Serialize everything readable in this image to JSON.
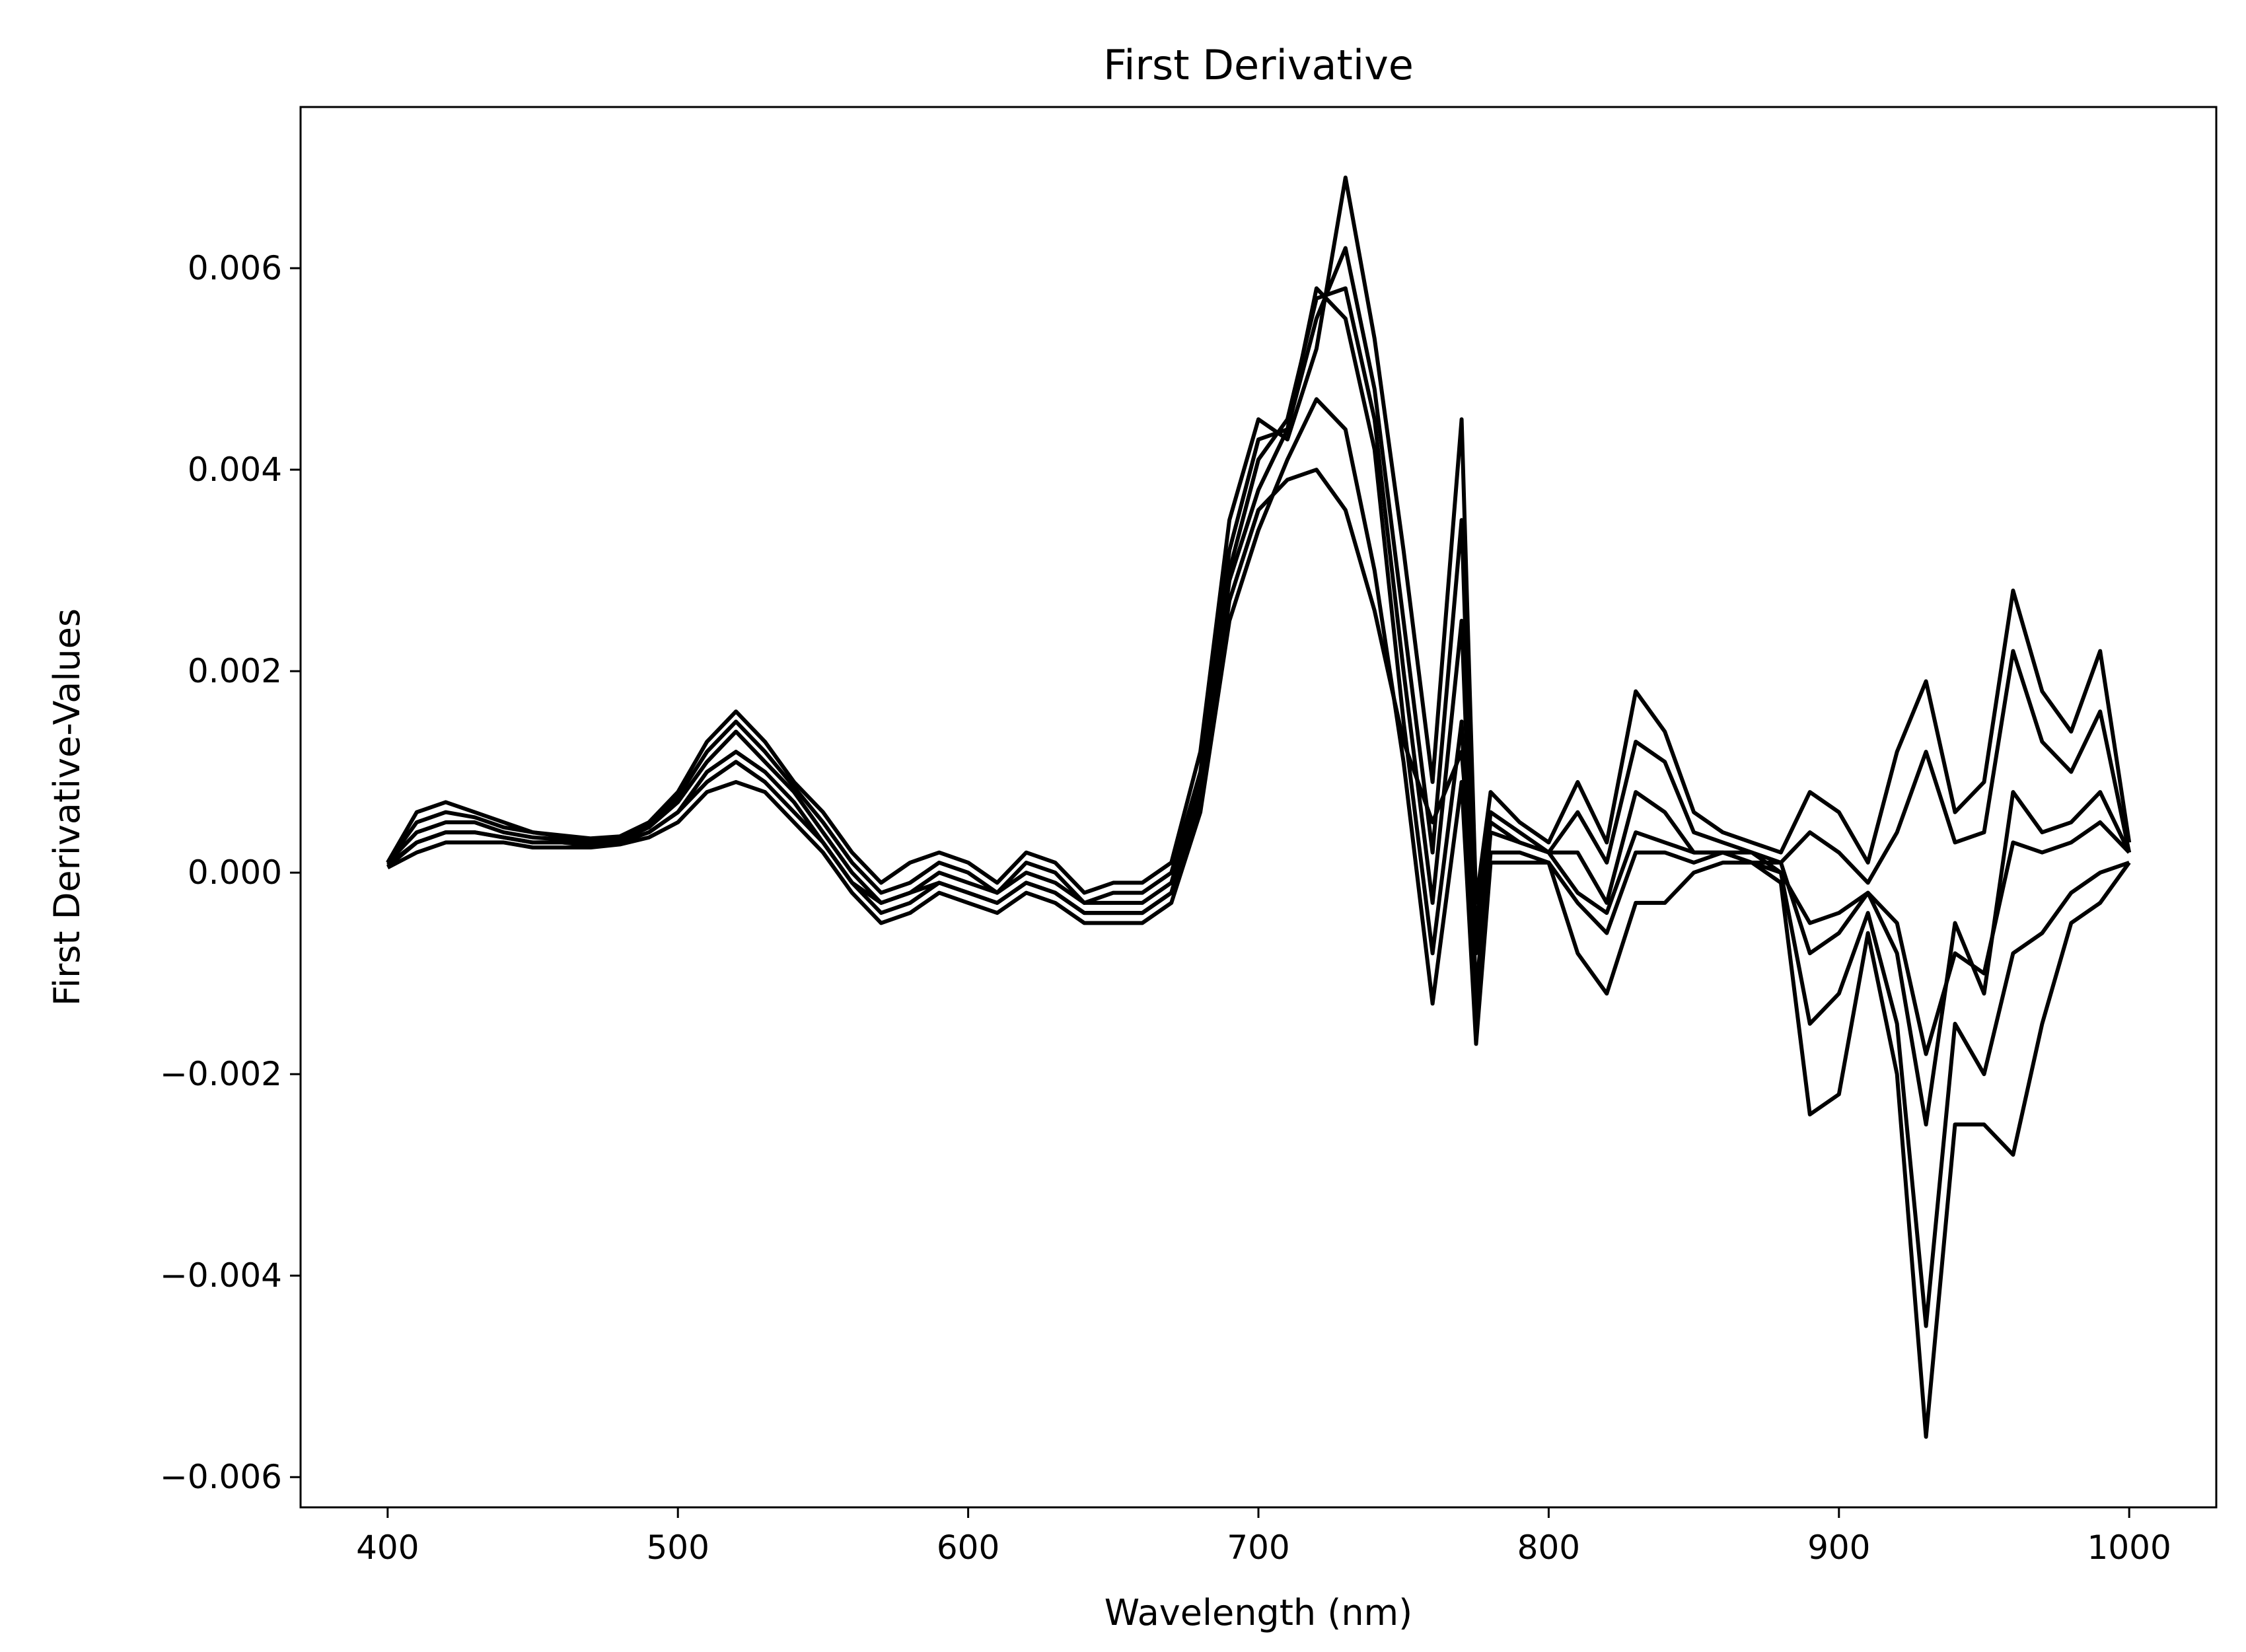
{
  "chart_data": {
    "type": "line",
    "title": "First Derivative",
    "xlabel": "Wavelength (nm)",
    "ylabel": "First Derivative-Values",
    "xlim": [
      370,
      1030
    ],
    "ylim": [
      -0.0063,
      0.0076
    ],
    "xticks": [
      400,
      500,
      600,
      700,
      800,
      900,
      1000
    ],
    "xtick_labels": [
      "400",
      "500",
      "600",
      "700",
      "800",
      "900",
      "1000"
    ],
    "yticks": [
      -0.006,
      -0.004,
      -0.002,
      0.0,
      0.002,
      0.004,
      0.006
    ],
    "ytick_labels": [
      "−0.006",
      "−0.004",
      "−0.002",
      "0.000",
      "0.002",
      "0.004",
      "0.006"
    ],
    "grid": false,
    "line_color": "#000000",
    "x": [
      400,
      410,
      420,
      430,
      440,
      450,
      460,
      470,
      480,
      490,
      500,
      510,
      520,
      530,
      540,
      550,
      560,
      570,
      580,
      590,
      600,
      610,
      620,
      630,
      640,
      650,
      660,
      670,
      680,
      690,
      700,
      710,
      720,
      730,
      740,
      750,
      760,
      770,
      775,
      780,
      790,
      800,
      810,
      820,
      830,
      840,
      850,
      860,
      870,
      880,
      890,
      900,
      910,
      920,
      930,
      940,
      950,
      960,
      970,
      980,
      990,
      1000
    ],
    "series": [
      {
        "values": [
          0.0001,
          0.0006,
          0.0007,
          0.0006,
          0.0005,
          0.0004,
          0.00037,
          0.00034,
          0.00036,
          0.0005,
          0.0008,
          0.0013,
          0.0016,
          0.0013,
          0.0009,
          0.0006,
          0.0002,
          -0.0001,
          0.0001,
          0.0002,
          0.0001,
          -0.0001,
          0.0002,
          0.0001,
          -0.0002,
          -0.0001,
          -0.0001,
          0.0001,
          0.0012,
          0.0035,
          0.0045,
          0.0043,
          0.0052,
          0.0069,
          0.0053,
          0.0032,
          0.0009,
          0.0045,
          -0.0003,
          0.0008,
          0.0005,
          0.0003,
          0.0009,
          0.0003,
          0.0018,
          0.0014,
          0.0006,
          0.0004,
          0.0003,
          0.0002,
          0.0008,
          0.0006,
          0.0001,
          0.0012,
          0.0019,
          0.0006,
          0.0009,
          0.0028,
          0.0018,
          0.0014,
          0.0022,
          0.0003
        ]
      },
      {
        "values": [
          0.0001,
          0.0005,
          0.0006,
          0.00055,
          0.00045,
          0.0004,
          0.00036,
          0.00033,
          0.00035,
          0.00048,
          0.00075,
          0.0012,
          0.0015,
          0.0012,
          0.00085,
          0.0005,
          0.0001,
          -0.0002,
          -0.0001,
          0.0001,
          0.0,
          -0.0002,
          0.0001,
          0.0,
          -0.0003,
          -0.0002,
          -0.0002,
          0.0,
          0.001,
          0.0032,
          0.0043,
          0.0044,
          0.0055,
          0.0062,
          0.0048,
          0.0025,
          0.0002,
          0.0035,
          -0.0008,
          0.0006,
          0.0004,
          0.0002,
          0.0006,
          0.0001,
          0.0013,
          0.0011,
          0.0004,
          0.0003,
          0.0002,
          0.0001,
          0.0004,
          0.0002,
          -0.0001,
          0.0004,
          0.0012,
          0.0003,
          0.0004,
          0.0022,
          0.0013,
          0.001,
          0.0016,
          0.0002
        ]
      },
      {
        "values": [
          0.0001,
          0.0004,
          0.0005,
          0.0005,
          0.0004,
          0.00035,
          0.00033,
          0.0003,
          0.00032,
          0.00045,
          0.0007,
          0.0011,
          0.0014,
          0.0011,
          0.0008,
          0.0004,
          0.0,
          -0.0003,
          -0.0002,
          0.0,
          -0.0001,
          -0.0002,
          0.0,
          -0.0001,
          -0.0003,
          -0.0003,
          -0.0003,
          -0.0001,
          0.0009,
          0.003,
          0.0041,
          0.0045,
          0.0057,
          0.0058,
          0.0045,
          0.002,
          -0.0003,
          0.0025,
          -0.0012,
          0.0004,
          0.0003,
          0.0002,
          0.0002,
          -0.0003,
          0.0008,
          0.0006,
          0.0002,
          0.0002,
          0.0002,
          0.0,
          -0.0005,
          -0.0004,
          -0.0002,
          -0.0008,
          -0.0025,
          -0.0005,
          -0.0012,
          0.0008,
          0.0004,
          0.0005,
          0.0008,
          0.0002
        ]
      },
      {
        "values": [
          8e-05,
          0.0003,
          0.0004,
          0.0004,
          0.00035,
          0.0003,
          0.0003,
          0.00028,
          0.0003,
          0.0004,
          0.0006,
          0.001,
          0.0012,
          0.001,
          0.0007,
          0.0003,
          -0.0001,
          -0.0004,
          -0.0003,
          -0.0001,
          -0.0002,
          -0.0003,
          -0.0001,
          -0.0002,
          -0.0004,
          -0.0004,
          -0.0004,
          -0.0002,
          0.0008,
          0.0029,
          0.0038,
          0.0044,
          0.0058,
          0.0055,
          0.0042,
          0.0015,
          -0.0008,
          0.0015,
          -0.0015,
          0.0002,
          0.0002,
          0.0001,
          -0.0003,
          -0.0006,
          0.0002,
          0.0002,
          0.0001,
          0.0002,
          0.0001,
          0.0,
          -0.0015,
          -0.0012,
          -0.0004,
          -0.0015,
          -0.0045,
          -0.0015,
          -0.002,
          -0.0008,
          -0.0006,
          -0.0002,
          0.0,
          0.0001
        ]
      },
      {
        "values": [
          5e-05,
          0.0002,
          0.0003,
          0.0003,
          0.0003,
          0.00025,
          0.00025,
          0.00025,
          0.00028,
          0.00035,
          0.0005,
          0.0008,
          0.0009,
          0.0008,
          0.0005,
          0.0002,
          -0.0002,
          -0.0005,
          -0.0004,
          -0.0002,
          -0.0003,
          -0.0004,
          -0.0002,
          -0.0003,
          -0.0005,
          -0.0005,
          -0.0005,
          -0.0003,
          0.0006,
          0.0025,
          0.0034,
          0.0041,
          0.0047,
          0.0044,
          0.003,
          0.0011,
          -0.0013,
          0.0009,
          -0.0017,
          0.0001,
          0.0001,
          0.0001,
          -0.0008,
          -0.0012,
          -0.0003,
          -0.0003,
          0.0,
          0.0001,
          0.0001,
          -0.0001,
          -0.0024,
          -0.0022,
          -0.0006,
          -0.002,
          -0.0056,
          -0.0025,
          -0.0025,
          -0.0028,
          -0.0015,
          -0.0005,
          -0.0003,
          0.0001
        ]
      },
      {
        "values": [
          6e-05,
          0.0003,
          0.0004,
          0.0004,
          0.00035,
          0.0003,
          0.0003,
          0.00027,
          0.0003,
          0.0004,
          0.0006,
          0.0009,
          0.0011,
          0.0009,
          0.0006,
          0.0003,
          -0.0001,
          -0.0003,
          -0.0002,
          -0.0001,
          -0.0002,
          -0.0003,
          -0.0001,
          -0.0002,
          -0.0004,
          -0.0004,
          -0.0004,
          -0.0002,
          0.0007,
          0.0027,
          0.0036,
          0.0039,
          0.004,
          0.0036,
          0.0026,
          0.0013,
          0.0005,
          0.0012,
          -0.0005,
          0.0005,
          0.0003,
          0.0002,
          -0.0002,
          -0.0004,
          0.0004,
          0.0003,
          0.0002,
          0.0002,
          0.0001,
          0.0001,
          -0.0008,
          -0.0006,
          -0.0002,
          -0.0005,
          -0.0018,
          -0.0008,
          -0.001,
          0.0003,
          0.0002,
          0.0003,
          0.0005,
          0.0002
        ]
      }
    ]
  }
}
